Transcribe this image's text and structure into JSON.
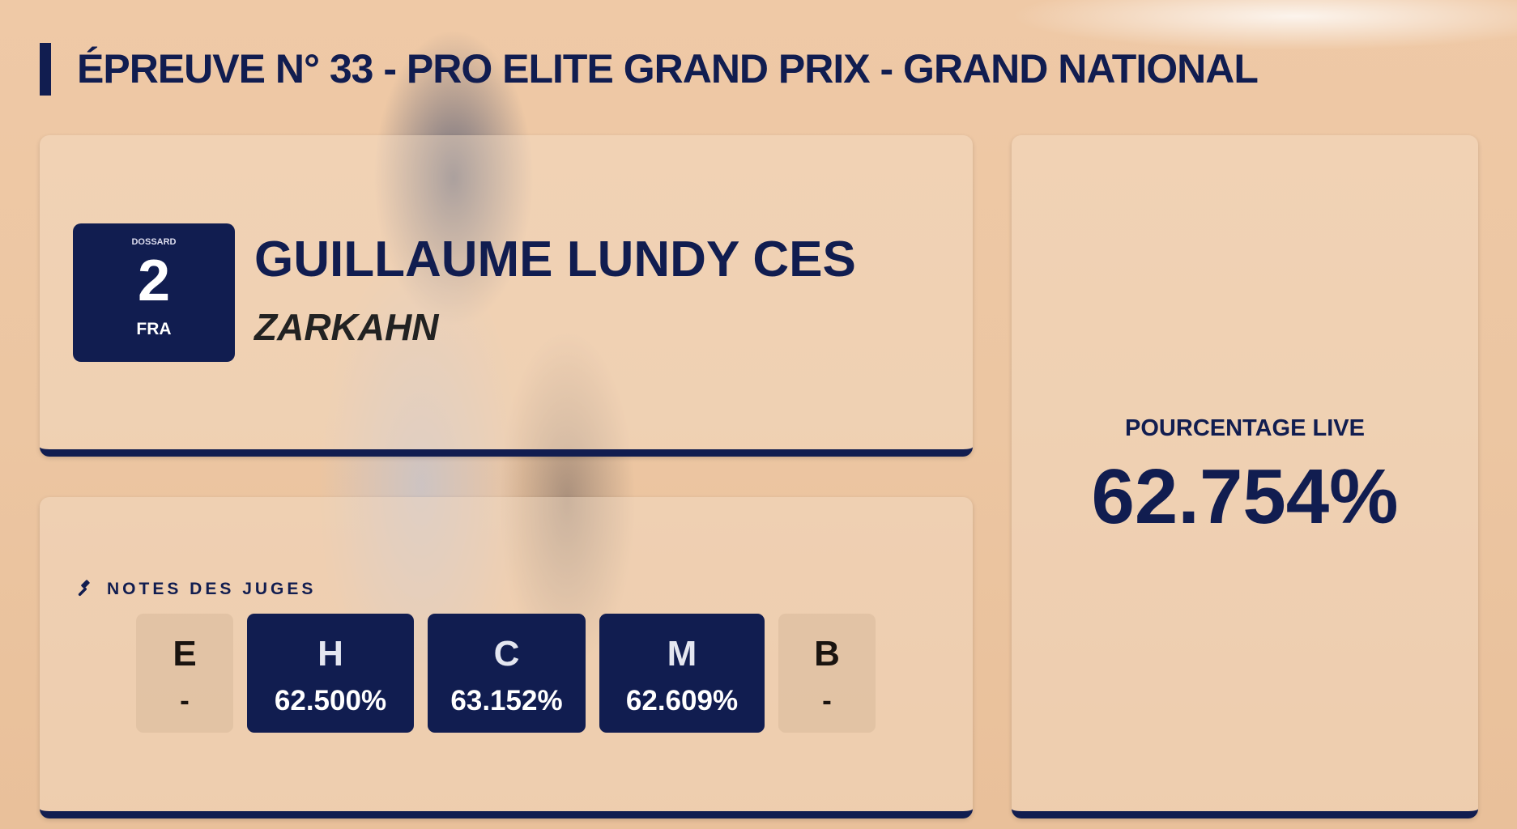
{
  "header": {
    "title": "ÉPREUVE N° 33 - PRO ELITE GRAND PRIX - GRAND NATIONAL"
  },
  "rider": {
    "dossard_label": "DOSSARD",
    "dossard_number": "2",
    "nation": "FRA",
    "name": "GUILLAUME LUNDY CES",
    "horse": "ZARKAHN"
  },
  "judges": {
    "title": "NOTES DES JUGES",
    "icon": "gavel-icon",
    "items": [
      {
        "letter": "E",
        "score": "-",
        "active": false
      },
      {
        "letter": "H",
        "score": "62.500%",
        "active": true
      },
      {
        "letter": "C",
        "score": "63.152%",
        "active": true
      },
      {
        "letter": "M",
        "score": "62.609%",
        "active": true
      },
      {
        "letter": "B",
        "score": "-",
        "active": false
      }
    ]
  },
  "live": {
    "label": "POURCENTAGE LIVE",
    "value": "62.754%"
  },
  "colors": {
    "accent": "#111d50"
  }
}
